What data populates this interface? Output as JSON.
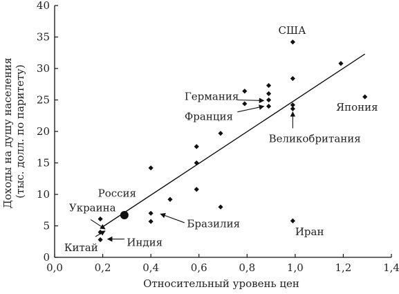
{
  "chart_data": {
    "type": "scatter",
    "xlabel": "Относительный уровень цен",
    "ylabel_lines": [
      "Доходы на душу населения",
      "(тыс. долл. по паритету)"
    ],
    "xlim": [
      0,
      1.4
    ],
    "ylim": [
      0,
      40
    ],
    "xticks": [
      {
        "value": 0.0,
        "label": "0,0"
      },
      {
        "value": 0.2,
        "label": "0,2"
      },
      {
        "value": 0.4,
        "label": "0,4"
      },
      {
        "value": 0.6,
        "label": "0,6"
      },
      {
        "value": 0.8,
        "label": "0,8"
      },
      {
        "value": 1.0,
        "label": "1,0"
      },
      {
        "value": 1.2,
        "label": "1,2"
      },
      {
        "value": 1.4,
        "label": "1,4"
      }
    ],
    "yticks": [
      {
        "value": 0,
        "label": "0"
      },
      {
        "value": 5,
        "label": "5"
      },
      {
        "value": 10,
        "label": "10"
      },
      {
        "value": 15,
        "label": "15"
      },
      {
        "value": 20,
        "label": "20"
      },
      {
        "value": 25,
        "label": "25"
      },
      {
        "value": 30,
        "label": "30"
      },
      {
        "value": 35,
        "label": "35"
      },
      {
        "value": 40,
        "label": "40"
      }
    ],
    "points": [
      {
        "x": 0.19,
        "y": 6.1
      },
      {
        "x": 0.19,
        "y": 4.0
      },
      {
        "x": 0.19,
        "y": 2.8
      },
      {
        "x": 0.4,
        "y": 14.2
      },
      {
        "x": 0.4,
        "y": 7.0
      },
      {
        "x": 0.4,
        "y": 5.7
      },
      {
        "x": 0.48,
        "y": 9.2
      },
      {
        "x": 0.59,
        "y": 17.6
      },
      {
        "x": 0.59,
        "y": 15.0
      },
      {
        "x": 0.59,
        "y": 10.8
      },
      {
        "x": 0.69,
        "y": 19.7
      },
      {
        "x": 0.69,
        "y": 8.0
      },
      {
        "x": 0.79,
        "y": 26.4
      },
      {
        "x": 0.79,
        "y": 24.4
      },
      {
        "x": 0.89,
        "y": 27.3
      },
      {
        "x": 0.89,
        "y": 26.0
      },
      {
        "x": 0.89,
        "y": 25.0
      },
      {
        "x": 0.89,
        "y": 24.0
      },
      {
        "x": 0.99,
        "y": 34.2
      },
      {
        "x": 0.99,
        "y": 28.4
      },
      {
        "x": 0.99,
        "y": 24.2
      },
      {
        "x": 0.99,
        "y": 23.6
      },
      {
        "x": 0.99,
        "y": 5.8
      },
      {
        "x": 1.19,
        "y": 30.8
      },
      {
        "x": 1.29,
        "y": 25.5
      }
    ],
    "highlight_point": {
      "x": 0.29,
      "y": 6.7
    },
    "trend_line": {
      "x": [
        0.19,
        1.29
      ],
      "y": [
        4.6,
        32.3
      ]
    },
    "annotations": [
      {
        "text": "США",
        "x": 0.93,
        "y": 35.5
      },
      {
        "text": "Германия",
        "x": 0.54,
        "y": 25.0
      },
      {
        "text": "Франция",
        "x": 0.54,
        "y": 21.8
      },
      {
        "text": "Япония",
        "x": 1.17,
        "y": 23.3
      },
      {
        "text": "Великобритания",
        "x": 0.89,
        "y": 18.3
      },
      {
        "text": "Россия",
        "x": 0.18,
        "y": 9.6
      },
      {
        "text": "Украина",
        "x": 0.06,
        "y": 7.3
      },
      {
        "text": "Бразилия",
        "x": 0.55,
        "y": 4.8
      },
      {
        "text": "Иран",
        "x": 1.0,
        "y": 3.5
      },
      {
        "text": "Индия",
        "x": 0.3,
        "y": 1.8
      },
      {
        "text": "Китай",
        "x": 0.04,
        "y": 1.0
      }
    ],
    "arrows": [
      {
        "from": [
          0.76,
          25.0
        ],
        "to": [
          0.87,
          24.9
        ]
      },
      {
        "from": [
          0.76,
          23.1
        ],
        "to": [
          0.87,
          24.0
        ]
      },
      {
        "from": [
          0.99,
          20.5
        ],
        "to": [
          0.99,
          23.1
        ]
      },
      {
        "from": [
          0.15,
          6.0
        ],
        "to": [
          0.21,
          4.5
        ]
      },
      {
        "from": [
          0.29,
          2.9
        ],
        "to": [
          0.22,
          2.9
        ]
      },
      {
        "from": [
          0.17,
          3.3
        ],
        "to": [
          0.21,
          4.2
        ]
      },
      {
        "from": [
          0.54,
          5.5
        ],
        "to": [
          0.44,
          6.9
        ]
      }
    ]
  }
}
